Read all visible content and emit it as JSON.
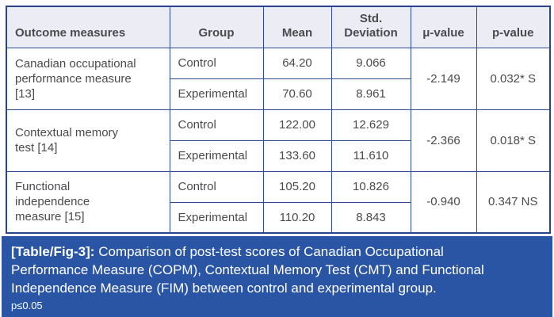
{
  "colors": {
    "caption_bg": "#2a55a5",
    "header_bg": "#ebecf4",
    "header_text": "#2b4f9e",
    "table_border": "#2e4c96",
    "body_text": "#4a4b4d"
  },
  "table": {
    "headers": [
      "Outcome measures",
      "Group",
      "Mean",
      "Std. Deviation",
      "μ-value",
      "p-value"
    ],
    "groups": [
      {
        "measure": "Canadian occupational performance measure [13]",
        "rows": [
          {
            "group": "Control",
            "mean": "64.20",
            "std": "9.066"
          },
          {
            "group": "Experimental",
            "mean": "70.60",
            "std": "8.961"
          }
        ],
        "mu": "-2.149",
        "p": "0.032* S"
      },
      {
        "measure": "Contextual memory test [14]",
        "rows": [
          {
            "group": "Control",
            "mean": "122.00",
            "std": "12.629"
          },
          {
            "group": "Experimental",
            "mean": "133.60",
            "std": "11.610"
          }
        ],
        "mu": "-2.366",
        "p": "0.018* S"
      },
      {
        "measure": "Functional independence measure [15]",
        "rows": [
          {
            "group": "Control",
            "mean": "105.20",
            "std": "10.826"
          },
          {
            "group": "Experimental",
            "mean": "110.20",
            "std": "8.843"
          }
        ],
        "mu": "-0.940",
        "p": "0.347 NS"
      }
    ]
  },
  "caption": {
    "label": "[Table/Fig-3]:",
    "text": "Comparison of post-test scores of Canadian Occupational Performance Measure (COPM), Contextual Memory Test (CMT) and Functional Independence Measure (FIM) between control and experimental group.",
    "note": "p≤0.05"
  }
}
